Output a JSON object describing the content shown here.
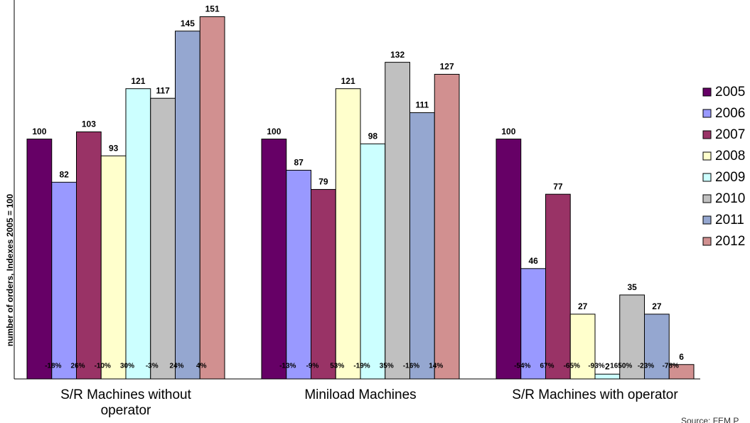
{
  "chart_data": {
    "type": "bar",
    "y_label": "number of orders, Indexes 2005 = 100",
    "categories": [
      "S/R Machines without operator",
      "Miniload Machines",
      "S/R Machines with operator"
    ],
    "series": [
      {
        "name": "2005",
        "color": "#660066",
        "values": [
          100,
          100,
          100
        ],
        "change_labels": [
          null,
          null,
          null
        ]
      },
      {
        "name": "2006",
        "color": "#9999ff",
        "values": [
          82,
          87,
          46
        ],
        "change_labels": [
          "-18%",
          "-13%",
          "-54%"
        ]
      },
      {
        "name": "2007",
        "color": "#993366",
        "values": [
          103,
          79,
          77
        ],
        "change_labels": [
          "26%",
          "-9%",
          "67%"
        ]
      },
      {
        "name": "2008",
        "color": "#ffffcc",
        "values": [
          93,
          121,
          27
        ],
        "change_labels": [
          "-10%",
          "53%",
          "-65%"
        ]
      },
      {
        "name": "2009",
        "color": "#ccffff",
        "values": [
          121,
          98,
          2
        ],
        "change_labels": [
          "30%",
          "-19%",
          "-93%"
        ]
      },
      {
        "name": "2010",
        "color": "#c0c0c0",
        "values": [
          117,
          132,
          35
        ],
        "change_labels": [
          "-3%",
          "35%",
          "1650%"
        ]
      },
      {
        "name": "2011",
        "color": "#95a7d0",
        "values": [
          145,
          111,
          27
        ],
        "change_labels": [
          "24%",
          "-16%",
          "-23%"
        ]
      },
      {
        "name": "2012",
        "color": "#d19090",
        "values": [
          151,
          127,
          6
        ],
        "change_labels": [
          "4%",
          "14%",
          "-78%"
        ]
      }
    ],
    "ylim": [
      0,
      155
    ],
    "legend": "right",
    "source": "Source: FEM P"
  }
}
